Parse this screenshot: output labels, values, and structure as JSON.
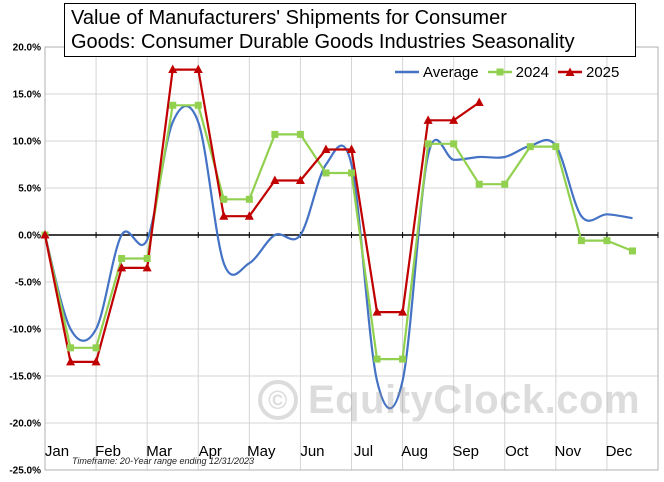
{
  "title_lines": [
    "Value of Manufacturers'  Shipments  for Consumer",
    "Goods: Consumer Durable Goods Industries Seasonality"
  ],
  "timeframe": "Timeframe: 20-Year range ending 12/31/2023",
  "watermark": "EquityClock.com",
  "watermark_symbol": "©",
  "colors": {
    "average": "#4472C4",
    "s2024": "#92D050",
    "s2025": "#C00000",
    "background": "#ffffff"
  },
  "chart_data": {
    "type": "line",
    "ylim": [
      -25,
      20
    ],
    "y_ticks": [
      -25,
      -20,
      -15,
      -10,
      -5,
      0,
      5,
      10,
      15,
      20
    ],
    "y_tick_labels": [
      "-25.0%",
      "-20.0%",
      "-15.0%",
      "-10.0%",
      "-5.0%",
      "0.0%",
      "5.0%",
      "10.0%",
      "15.0%",
      "20.0%"
    ],
    "categories": [
      "Jan",
      "Feb",
      "Mar",
      "Apr",
      "May",
      "Jun",
      "Jul",
      "Aug",
      "Sep",
      "Oct",
      "Nov",
      "Dec"
    ],
    "legend_position": "top-right",
    "grid": true,
    "series": [
      {
        "name": "Average",
        "style": "smooth-line",
        "x": [
          0,
          0.5,
          1,
          1.5,
          2,
          2.5,
          3,
          3.5,
          4,
          4.5,
          5,
          5.5,
          6,
          6.5,
          7,
          7.5,
          8,
          8.5,
          9,
          9.5,
          10,
          10.5,
          11,
          11.5
        ],
        "values": [
          0,
          -10,
          -10,
          0,
          -0.5,
          12,
          12,
          -3,
          -3,
          0,
          0,
          7.5,
          7.5,
          -15.5,
          -15.5,
          8.5,
          8,
          8.3,
          8.3,
          9.5,
          9.5,
          2,
          2.2,
          1.8
        ]
      },
      {
        "name": "2024",
        "style": "line-square",
        "x": [
          0,
          0.5,
          1,
          1.5,
          2,
          2.5,
          3,
          3.5,
          4,
          4.5,
          5,
          5.5,
          6,
          6.5,
          7,
          7.5,
          8,
          8.5,
          9,
          9.5,
          10,
          10.5,
          11,
          11.5
        ],
        "values": [
          0,
          -12,
          -12,
          -2.5,
          -2.5,
          13.8,
          13.8,
          3.8,
          3.8,
          10.7,
          10.7,
          6.6,
          6.6,
          -13.2,
          -13.2,
          9.7,
          9.7,
          5.4,
          5.4,
          9.4,
          9.4,
          -0.6,
          -0.6,
          -1.7
        ]
      },
      {
        "name": "2025",
        "style": "line-triangle",
        "x": [
          0,
          0.5,
          1,
          1.5,
          2,
          2.5,
          3,
          3.5,
          4,
          4.5,
          5,
          5.5,
          6,
          6.5,
          7,
          7.5,
          8,
          8.5
        ],
        "values": [
          0,
          -13.5,
          -13.5,
          -3.5,
          -3.5,
          17.6,
          17.6,
          2,
          2,
          5.8,
          5.8,
          9.1,
          9.1,
          -8.2,
          -8.2,
          12.2,
          12.2,
          14.1
        ]
      }
    ]
  }
}
